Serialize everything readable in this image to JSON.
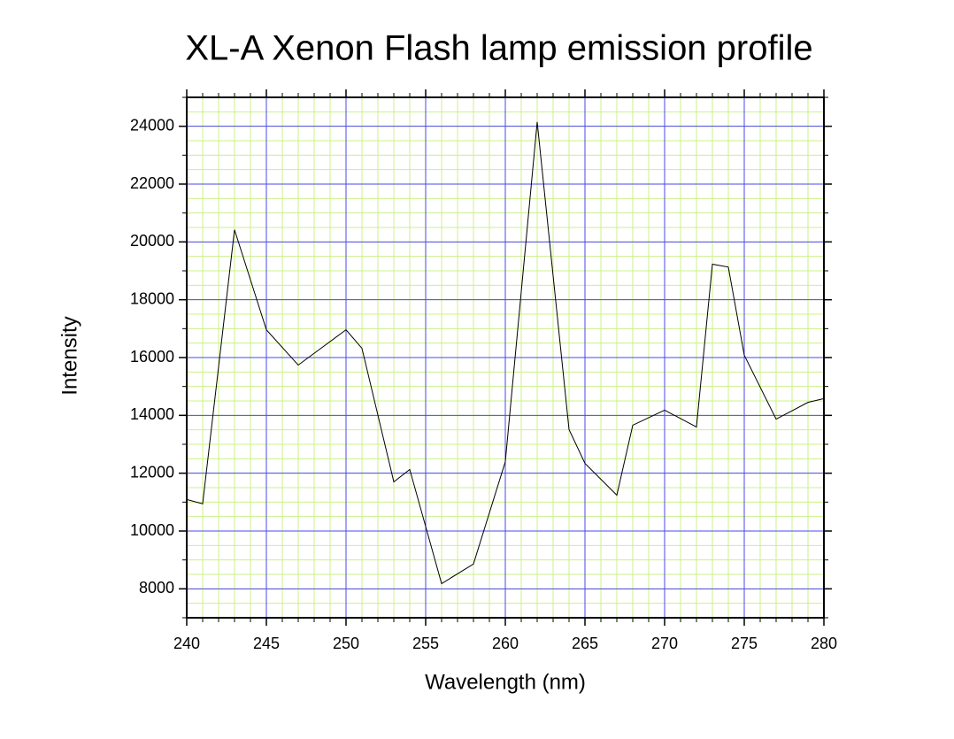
{
  "chart_data": {
    "type": "line",
    "title": "XL-A Xenon Flash lamp emission profile",
    "x_label": "Wavelength (nm)",
    "y_label": "Intensity",
    "x": [
      240,
      241,
      243,
      245,
      247,
      250,
      251,
      253,
      254,
      256,
      258,
      260,
      262,
      264,
      265,
      267,
      268,
      270,
      272,
      273,
      274,
      275,
      277,
      279,
      280
    ],
    "series": [
      {
        "name": "Intensity",
        "color": "#000000",
        "values": [
          11090,
          10940,
          20420,
          16960,
          15740,
          16960,
          16320,
          11700,
          12130,
          8180,
          8860,
          12400,
          24150,
          13510,
          12340,
          11240,
          13660,
          14180,
          13600,
          19230,
          19130,
          16080,
          13870,
          14450,
          14580
        ]
      }
    ],
    "xlim": [
      240,
      280
    ],
    "ylim": [
      7000,
      25000
    ],
    "xticks": [
      240,
      245,
      250,
      255,
      260,
      265,
      270,
      275,
      280
    ],
    "yticks": [
      8000,
      10000,
      12000,
      14000,
      16000,
      18000,
      20000,
      22000,
      24000
    ],
    "grid": true,
    "grid_color": "#4a4ae8",
    "minor_grid": {
      "x": 1,
      "y": 500,
      "color": "#ccf08a"
    }
  }
}
